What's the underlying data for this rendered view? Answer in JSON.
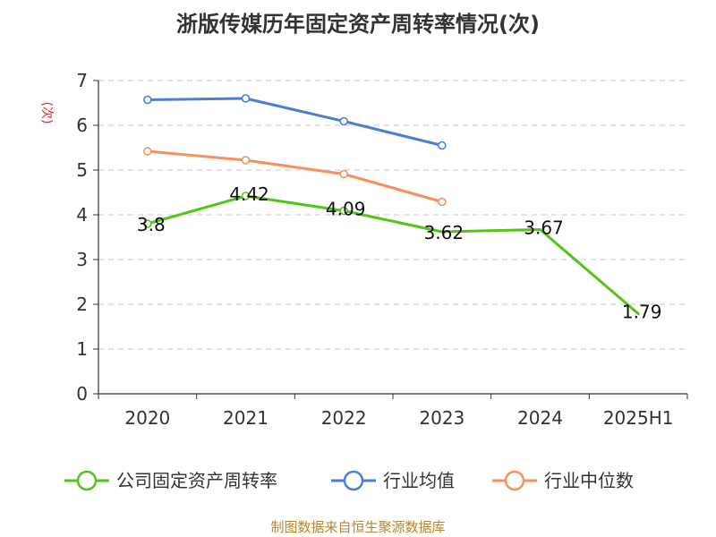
{
  "chart_data": {
    "type": "line",
    "title": "浙版传媒历年固定资产周转率情况(次)",
    "ylabel": "(次)",
    "xlabel": "",
    "categories": [
      "2020",
      "2021",
      "2022",
      "2023",
      "2024",
      "2025H1"
    ],
    "ylim": [
      0,
      7
    ],
    "yticks": [
      0,
      1,
      2,
      3,
      4,
      5,
      6,
      7
    ],
    "grid": true,
    "legend_position": "bottom",
    "series": [
      {
        "name": "公司固定资产周转率",
        "color": "#52c41a",
        "values": [
          3.8,
          4.42,
          4.09,
          3.62,
          3.67,
          1.79
        ],
        "labels": [
          "3.8",
          "4.42",
          "4.09",
          "3.62",
          "3.67",
          "1.79"
        ]
      },
      {
        "name": "行业均值",
        "color": "#4a7fd6",
        "values": [
          6.57,
          6.6,
          6.09,
          5.55,
          null,
          null
        ]
      },
      {
        "name": "行业中位数",
        "color": "#f5915c",
        "values": [
          5.42,
          5.22,
          4.91,
          4.29,
          null,
          null
        ]
      }
    ]
  },
  "source": "制图数据来自恒生聚源数据库"
}
